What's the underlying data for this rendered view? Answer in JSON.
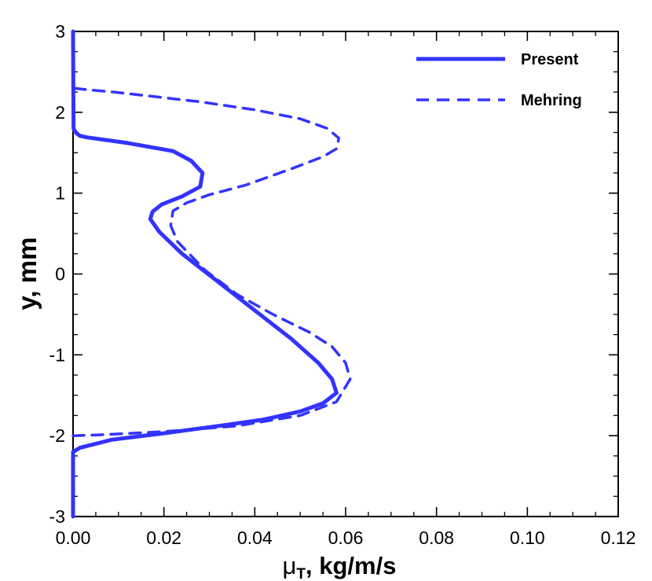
{
  "chart_data": {
    "type": "line",
    "title": "",
    "xlabel": {
      "main": "μ",
      "subscript": "T",
      "rest": ", kg/m/s"
    },
    "ylabel": "y, mm",
    "xlim": [
      0,
      0.12
    ],
    "ylim": [
      -3,
      3
    ],
    "x_ticks": [
      "0.00",
      "0.02",
      "0.04",
      "0.06",
      "0.08",
      "0.10",
      "0.12"
    ],
    "y_ticks": [
      "-3",
      "-2",
      "-1",
      "0",
      "1",
      "2",
      "3"
    ],
    "x_tick_values": [
      0,
      0.02,
      0.04,
      0.06,
      0.08,
      0.1,
      0.12
    ],
    "y_tick_values": [
      -3,
      -2,
      -1,
      0,
      1,
      2,
      3
    ],
    "x_minor_step": 0.005,
    "y_minor_step": 0.25,
    "grid": false,
    "legend_position": "top-right",
    "series": [
      {
        "name": "Present",
        "style": "solid",
        "color": "#3333ff",
        "x": [
          0.0,
          0.0,
          0.0,
          0.0015,
          0.0085,
          0.02,
          0.032,
          0.042,
          0.05,
          0.055,
          0.058,
          0.057,
          0.054,
          0.048,
          0.04,
          0.032,
          0.024,
          0.019,
          0.017,
          0.0175,
          0.0195,
          0.024,
          0.028,
          0.0285,
          0.026,
          0.022,
          0.012,
          0.003,
          0.0015,
          0.0008,
          0.0004,
          0.0001,
          0.0
        ],
        "y": [
          -3.0,
          -2.5,
          -2.2,
          -2.15,
          -2.05,
          -1.97,
          -1.88,
          -1.8,
          -1.7,
          -1.6,
          -1.47,
          -1.3,
          -1.1,
          -0.8,
          -0.45,
          -0.1,
          0.25,
          0.52,
          0.68,
          0.77,
          0.86,
          0.96,
          1.08,
          1.25,
          1.4,
          1.52,
          1.62,
          1.69,
          1.71,
          1.74,
          1.77,
          1.8,
          3.0
        ]
      },
      {
        "name": "Mehring",
        "style": "dashed",
        "color": "#3333ff",
        "x": [
          0.0,
          0.006,
          0.02,
          0.036,
          0.05,
          0.058,
          0.061,
          0.06,
          0.057,
          0.052,
          0.044,
          0.036,
          0.029,
          0.023,
          0.0215,
          0.022,
          0.025,
          0.03,
          0.038,
          0.048,
          0.055,
          0.058,
          0.0585,
          0.056,
          0.05,
          0.04,
          0.028,
          0.017,
          0.009,
          0.003,
          0.0
        ],
        "y": [
          -2.0,
          -1.99,
          -1.95,
          -1.88,
          -1.75,
          -1.58,
          -1.3,
          -1.1,
          -0.9,
          -0.72,
          -0.5,
          -0.25,
          0.05,
          0.4,
          0.6,
          0.78,
          0.88,
          0.98,
          1.1,
          1.3,
          1.45,
          1.55,
          1.68,
          1.8,
          1.92,
          2.03,
          2.13,
          2.2,
          2.25,
          2.28,
          2.3
        ]
      }
    ]
  }
}
